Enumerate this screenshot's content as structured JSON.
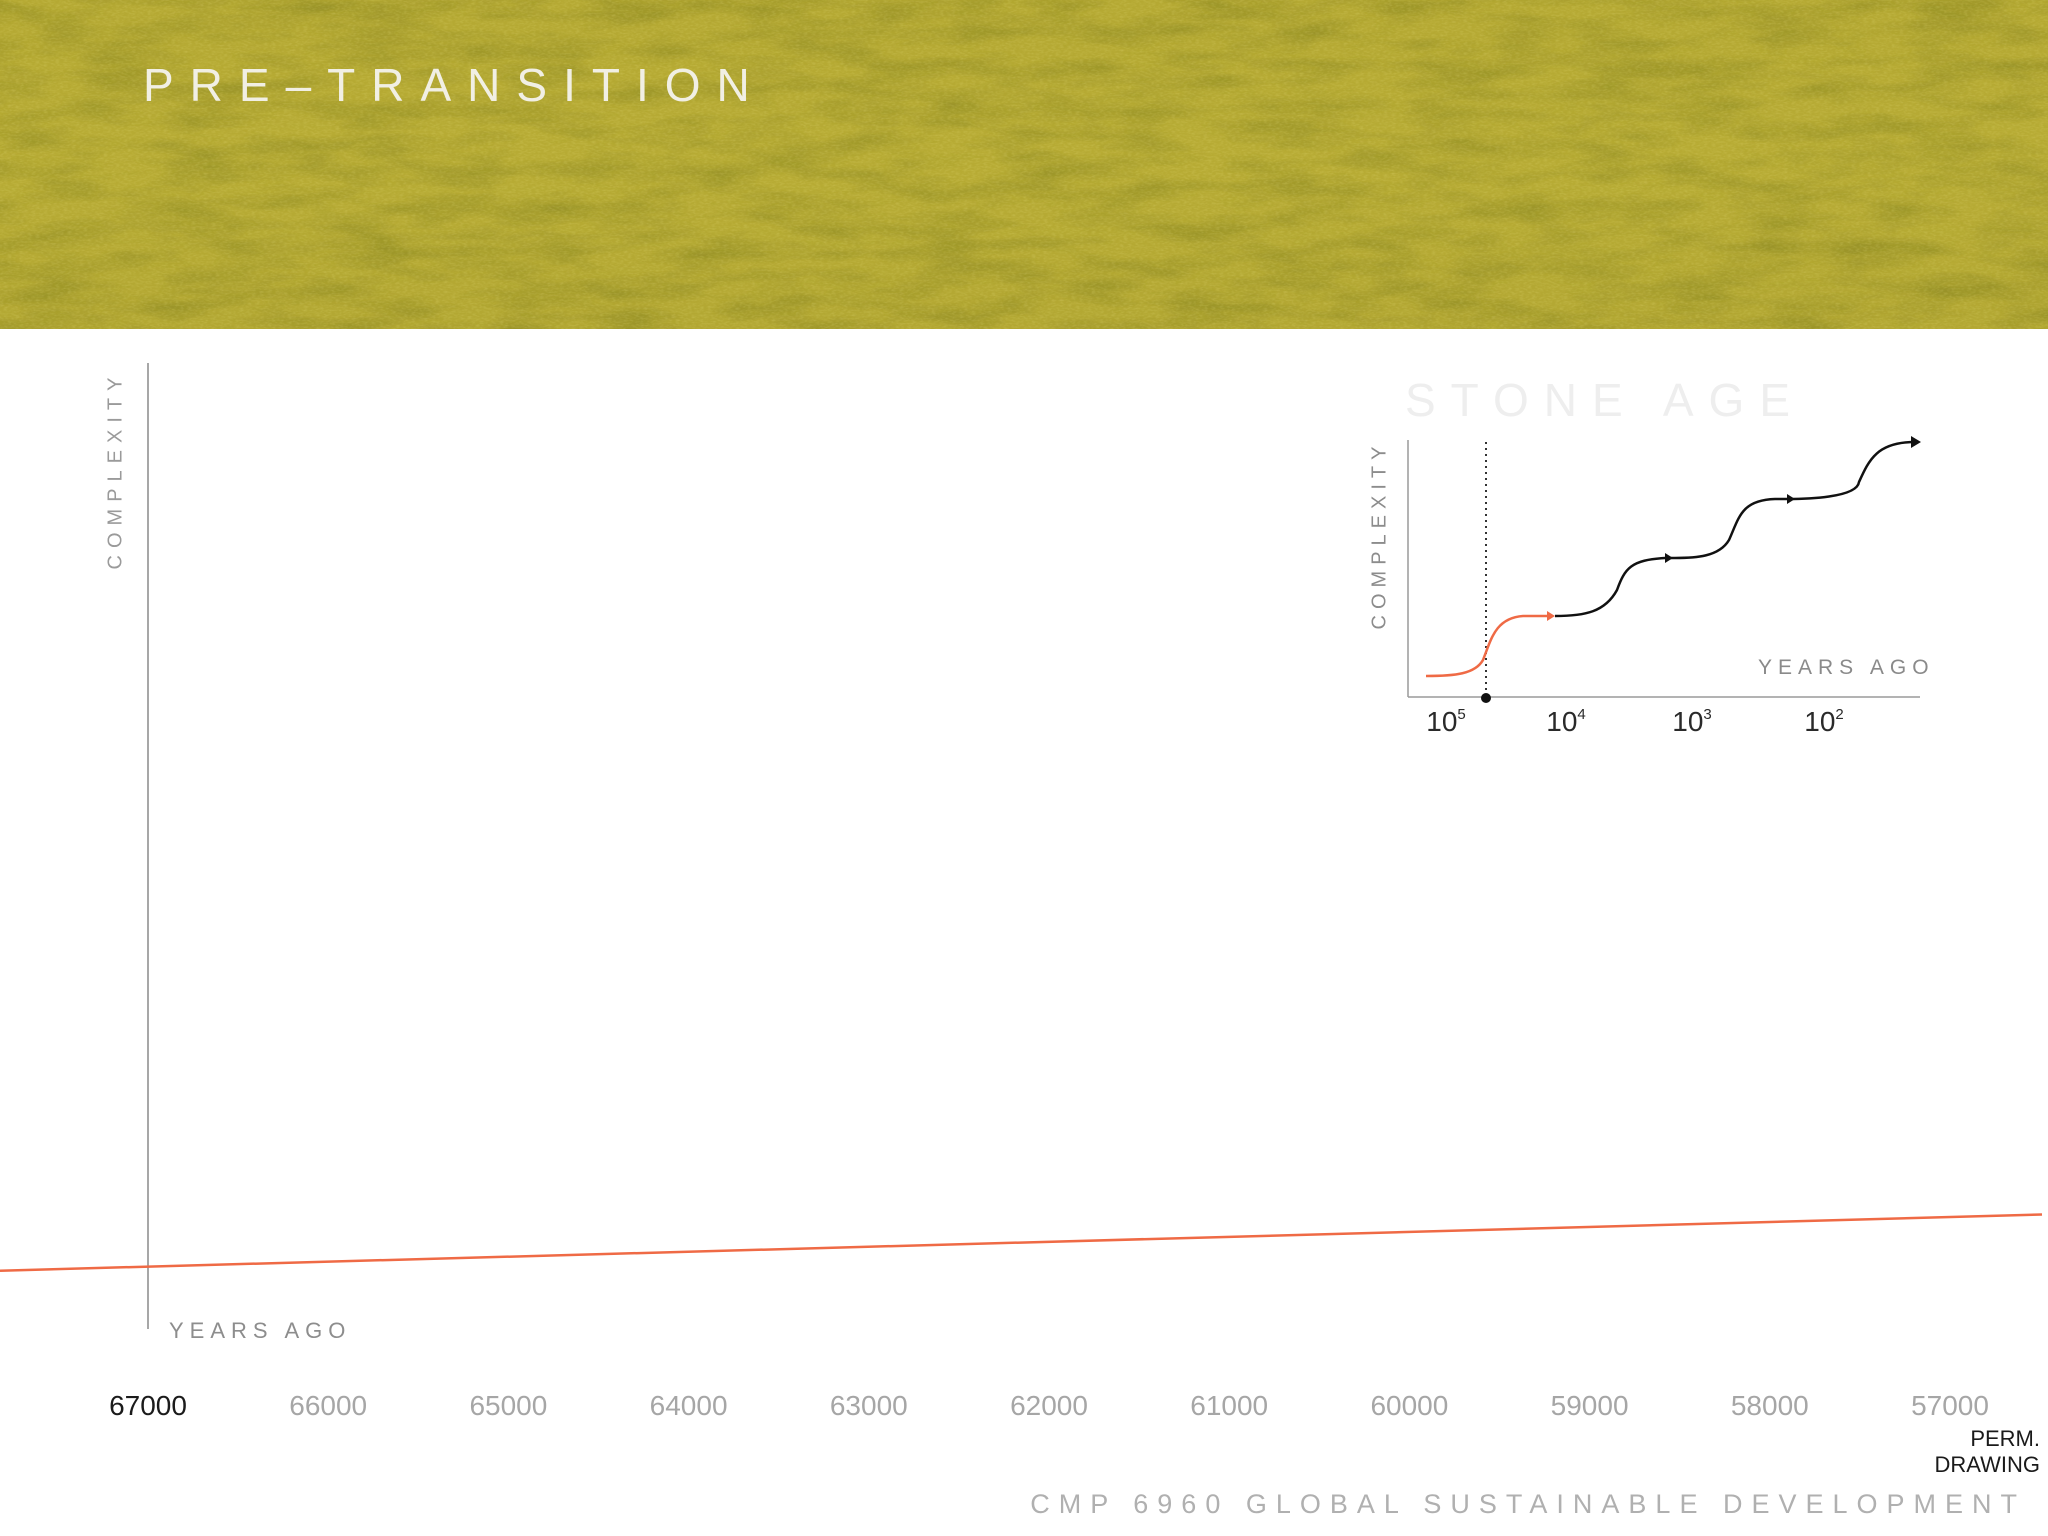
{
  "slide": {
    "title": "PRE–TRANSITION",
    "footer": "CMP 6960 GLOBAL SUSTAINABLE DEVELOPMENT"
  },
  "colors": {
    "accent": "#ef6a45",
    "grass": "#a59b2a",
    "axis": "#888888"
  },
  "chart_data": [
    {
      "type": "line",
      "xlabel": "YEARS AGO",
      "ylabel": "COMPLEXITY",
      "x_ticks": [
        "67000",
        "66000",
        "65000",
        "64000",
        "63000",
        "62000",
        "61000",
        "60000",
        "59000",
        "58000",
        "57000"
      ],
      "xlim": [
        67000,
        57000
      ],
      "series": [
        {
          "x": [
            67000,
            57000
          ],
          "y": [
            0.09,
            0.14
          ]
        }
      ],
      "annotations": [
        {
          "x": 57000,
          "text": "PERM. DRAWING"
        }
      ],
      "grid": false
    },
    {
      "type": "line",
      "title": "STONE AGE",
      "xlabel": "YEARS AGO",
      "ylabel": "COMPLEXITY",
      "x_scale": "log",
      "x_ticks": [
        {
          "base": "10",
          "exp": "5"
        },
        {
          "base": "10",
          "exp": "4"
        },
        {
          "base": "10",
          "exp": "3"
        },
        {
          "base": "10",
          "exp": "2"
        }
      ],
      "marker": "dotted vertical line at current time point",
      "grid": false
    }
  ]
}
